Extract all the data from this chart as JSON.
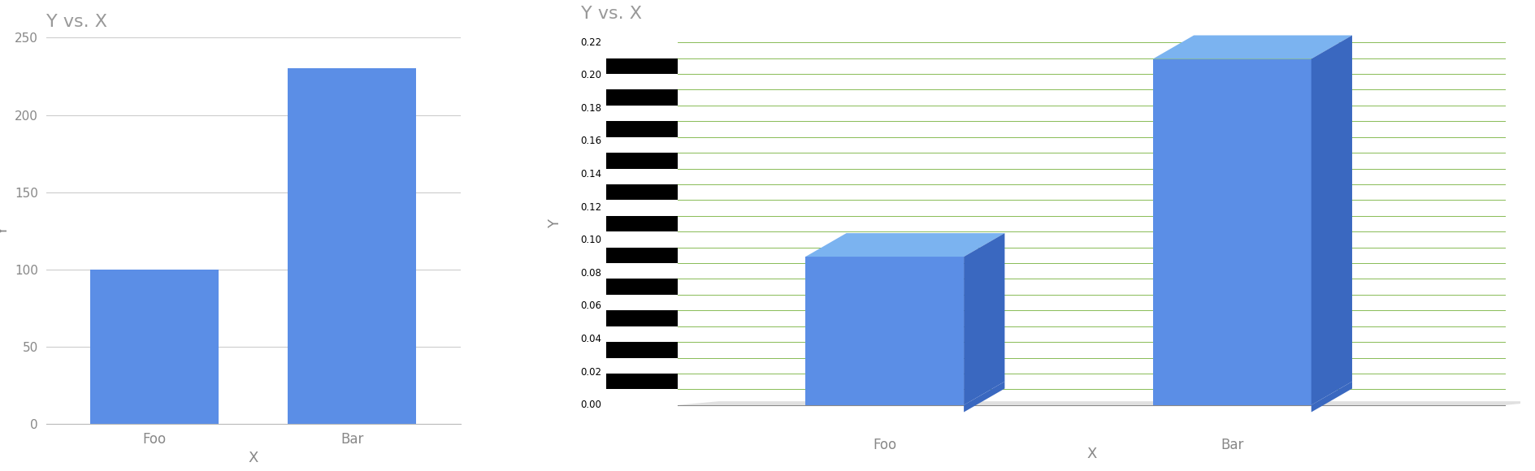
{
  "title": "Y vs. X",
  "xlabel": "X",
  "ylabel": "Y",
  "categories": [
    "Foo",
    "Bar"
  ],
  "values": [
    100,
    230
  ],
  "bar_color_2d": "#5B8EE6",
  "bar_color_3d_front": "#5B8EE6",
  "bar_color_3d_top": "#7BB3F0",
  "bar_color_3d_side": "#3A68C0",
  "ylim_2d": [
    0,
    250
  ],
  "y_max_3d": 0.22,
  "foo_val_3d": 0.09,
  "bar_val_3d": 0.21,
  "grid_color_2d": "#CCCCCC",
  "grid_color_3d": "#88BB55",
  "title_color": "#999999",
  "tick_color": "#888888",
  "axis_color": "#BBBBBB",
  "floor_color": "#E0E0E0",
  "bg_color": "#FFFFFF",
  "divider_color": "#CCCCCC",
  "fig_width": 18.9,
  "fig_height": 5.8
}
